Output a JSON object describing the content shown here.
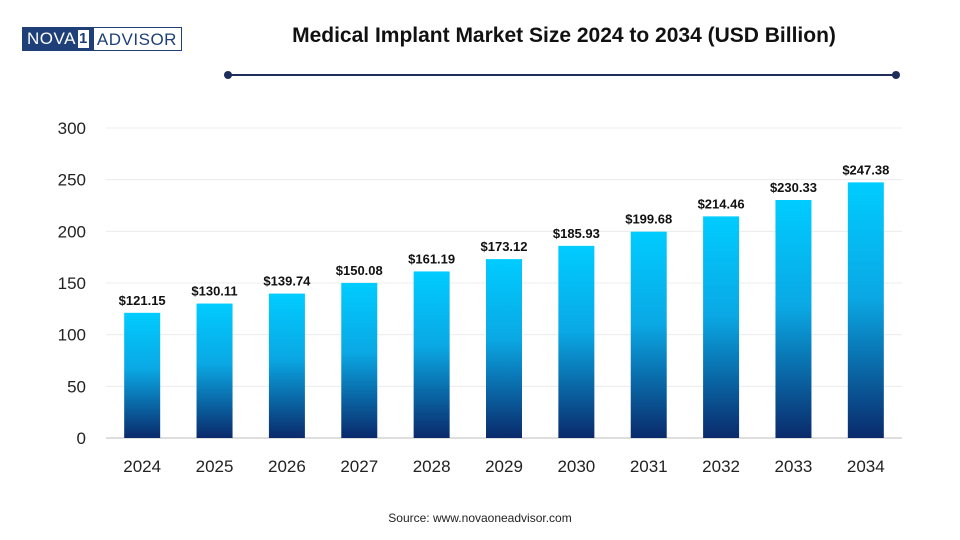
{
  "logo": {
    "part1": "NOVA",
    "part2": "1",
    "part3": "ADVISOR"
  },
  "title": "Medical Implant Market Size 2024 to 2034 (USD Billion)",
  "source": "Source: www.novaoneadvisor.com",
  "colors": {
    "bar_top": "#00ccff",
    "bar_bottom": "#0a2a6b",
    "title_rule": "#1e2d5a",
    "logo": "#1e3f78"
  },
  "chart_data": {
    "type": "bar",
    "title": "Medical Implant Market Size 2024 to 2034 (USD Billion)",
    "categories": [
      "2024",
      "2025",
      "2026",
      "2027",
      "2028",
      "2029",
      "2030",
      "2031",
      "2032",
      "2033",
      "2034"
    ],
    "values": [
      121.15,
      130.11,
      139.74,
      150.08,
      161.19,
      173.12,
      185.93,
      199.68,
      214.46,
      230.33,
      247.38
    ],
    "value_labels": [
      "$121.15",
      "$130.11",
      "$139.74",
      "$150.08",
      "$161.19",
      "$173.12",
      "$185.93",
      "$199.68",
      "$214.46",
      "$230.33",
      "$247.38"
    ],
    "yticks": [
      0,
      50,
      100,
      150,
      200,
      250,
      300
    ],
    "ylim": [
      0,
      300
    ],
    "xlabel": "",
    "ylabel": "",
    "grid": true,
    "legend": "none"
  }
}
